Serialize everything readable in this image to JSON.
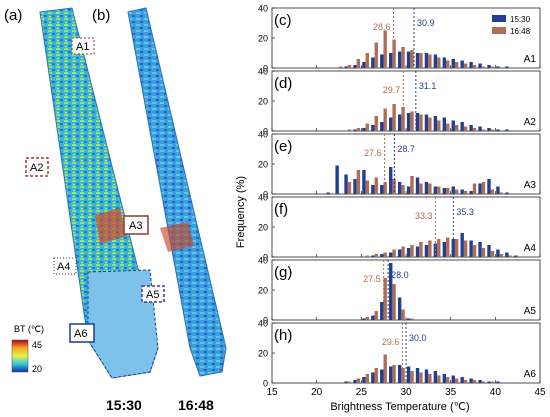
{
  "colors": {
    "s1530": "#1f3f93",
    "s1648": "#b06d55"
  },
  "images": {
    "panels": [
      {
        "letter": "(a)",
        "time": "15:30"
      },
      {
        "letter": "(b)",
        "time": "16:48"
      }
    ],
    "region_labels": [
      "A1",
      "A2",
      "A3",
      "A4",
      "A5",
      "A6"
    ],
    "colorbar": {
      "label": "BT (℃)",
      "max": "45",
      "min": "20"
    }
  },
  "chart_data": [
    {
      "type": "bar",
      "letter": "(c)",
      "region": "A1",
      "mean_1530": 30.9,
      "mean_1648": 28.6,
      "mean_1530_label": "30.9",
      "mean_1648_label": "28.6",
      "bins": [
        15,
        16,
        17,
        18,
        19,
        20,
        21,
        22,
        23,
        24,
        25,
        26,
        27,
        28,
        29,
        30,
        31,
        32,
        33,
        34,
        35,
        36,
        37,
        38,
        39,
        40,
        41,
        42,
        43,
        44
      ],
      "series": [
        {
          "name": "15:30",
          "values": [
            0,
            0,
            0,
            0,
            0,
            0,
            0,
            0,
            1,
            2,
            4,
            7,
            9,
            10,
            11,
            11,
            10,
            10,
            9,
            7,
            6,
            5,
            4,
            3,
            2,
            1,
            1,
            0,
            0,
            0
          ]
        },
        {
          "name": "16:48",
          "values": [
            0,
            0,
            0,
            0,
            0,
            0,
            0,
            1,
            2,
            6,
            10,
            17,
            25,
            19,
            14,
            12,
            10,
            9,
            7,
            5,
            4,
            3,
            2,
            1,
            1,
            0,
            0,
            0,
            0,
            0
          ]
        }
      ]
    },
    {
      "type": "bar",
      "letter": "(d)",
      "region": "A2",
      "mean_1530": 31.1,
      "mean_1648": 29.7,
      "mean_1530_label": "31.1",
      "mean_1648_label": "29.7",
      "bins": [
        15,
        16,
        17,
        18,
        19,
        20,
        21,
        22,
        23,
        24,
        25,
        26,
        27,
        28,
        29,
        30,
        31,
        32,
        33,
        34,
        35,
        36,
        37,
        38,
        39,
        40,
        41,
        42,
        43,
        44
      ],
      "series": [
        {
          "name": "15:30",
          "values": [
            0,
            0,
            0,
            0,
            0,
            0,
            0,
            0,
            0,
            1,
            2,
            4,
            6,
            9,
            11,
            12,
            12,
            11,
            10,
            9,
            7,
            6,
            4,
            3,
            2,
            1,
            1,
            0,
            0,
            0
          ]
        },
        {
          "name": "16:48",
          "values": [
            0,
            0,
            0,
            0,
            0,
            0,
            0,
            0,
            1,
            2,
            5,
            10,
            15,
            18,
            16,
            13,
            11,
            9,
            7,
            5,
            4,
            3,
            2,
            1,
            1,
            0,
            0,
            0,
            0,
            0
          ]
        }
      ]
    },
    {
      "type": "bar",
      "letter": "(e)",
      "region": "A3",
      "mean_1530": 28.7,
      "mean_1648": 27.6,
      "mean_1530_label": "28.7",
      "mean_1648_label": "27.6",
      "bins": [
        15,
        16,
        17,
        18,
        19,
        20,
        21,
        22,
        23,
        24,
        25,
        26,
        27,
        28,
        29,
        30,
        31,
        32,
        33,
        34,
        35,
        36,
        37,
        38,
        39,
        40,
        41,
        42,
        43,
        44
      ],
      "series": [
        {
          "name": "15:30",
          "values": [
            0,
            0,
            0,
            0,
            0,
            0,
            1,
            19,
            13,
            10,
            16,
            6,
            6,
            18,
            8,
            5,
            11,
            8,
            5,
            4,
            5,
            3,
            2,
            7,
            10,
            5,
            1,
            0,
            0,
            0
          ]
        },
        {
          "name": "16:48",
          "values": [
            0,
            0,
            0,
            0,
            0,
            0,
            0,
            0,
            8,
            16,
            9,
            11,
            8,
            10,
            6,
            12,
            7,
            7,
            5,
            4,
            3,
            2,
            7,
            8,
            3,
            1,
            0,
            0,
            0,
            0
          ]
        }
      ]
    },
    {
      "type": "bar",
      "letter": "(f)",
      "region": "A4",
      "mean_1530": 35.3,
      "mean_1648": 33.3,
      "mean_1530_label": "35.3",
      "mean_1648_label": "33.3",
      "bins": [
        15,
        16,
        17,
        18,
        19,
        20,
        21,
        22,
        23,
        24,
        25,
        26,
        27,
        28,
        29,
        30,
        31,
        32,
        33,
        34,
        35,
        36,
        37,
        38,
        39,
        40,
        41,
        42,
        43,
        44
      ],
      "series": [
        {
          "name": "15:30",
          "values": [
            0,
            0,
            0,
            0,
            0,
            0,
            0,
            0,
            0,
            0,
            0,
            1,
            2,
            3,
            5,
            6,
            7,
            8,
            9,
            10,
            12,
            16,
            11,
            10,
            8,
            5,
            3,
            1,
            0,
            0
          ]
        },
        {
          "name": "16:48",
          "values": [
            0,
            0,
            0,
            0,
            0,
            0,
            0,
            0,
            0,
            0,
            1,
            2,
            3,
            5,
            7,
            8,
            10,
            11,
            12,
            13,
            12,
            11,
            8,
            6,
            4,
            2,
            1,
            0,
            0,
            0
          ]
        }
      ]
    },
    {
      "type": "bar",
      "letter": "(g)",
      "region": "A5",
      "mean_1530": 28.0,
      "mean_1648": 27.5,
      "mean_1530_label": "28.0",
      "mean_1648_label": "27.5",
      "bins": [
        15,
        16,
        17,
        18,
        19,
        20,
        21,
        22,
        23,
        24,
        25,
        26,
        27,
        28,
        29,
        30,
        31,
        32,
        33,
        34,
        35,
        36,
        37,
        38,
        39,
        40,
        41,
        42,
        43,
        44
      ],
      "series": [
        {
          "name": "15:30",
          "values": [
            0,
            0,
            0,
            0,
            0,
            0,
            0,
            0,
            0,
            0,
            1,
            3,
            12,
            38,
            15,
            1,
            0,
            0,
            0,
            0,
            0,
            0,
            0,
            0,
            0,
            0,
            0,
            0,
            0,
            0
          ]
        },
        {
          "name": "16:48",
          "values": [
            0,
            0,
            0,
            0,
            0,
            0,
            0,
            0,
            0,
            0,
            2,
            6,
            28,
            24,
            7,
            1,
            0,
            0,
            0,
            0,
            0,
            0,
            0,
            0,
            0,
            0,
            0,
            0,
            0,
            0
          ]
        }
      ]
    },
    {
      "type": "bar",
      "letter": "(h)",
      "region": "A6",
      "mean_1530": 30.0,
      "mean_1648": 29.6,
      "mean_1530_label": "30.0",
      "mean_1648_label": "29.6",
      "bins": [
        15,
        16,
        17,
        18,
        19,
        20,
        21,
        22,
        23,
        24,
        25,
        26,
        27,
        28,
        29,
        30,
        31,
        32,
        33,
        34,
        35,
        36,
        37,
        38,
        39,
        40,
        41,
        42,
        43,
        44
      ],
      "series": [
        {
          "name": "15:30",
          "values": [
            0,
            0,
            0,
            0,
            0,
            0,
            0,
            0,
            1,
            2,
            4,
            7,
            9,
            11,
            12,
            11,
            10,
            9,
            8,
            6,
            5,
            4,
            3,
            2,
            1,
            1,
            0,
            0,
            0,
            0
          ]
        },
        {
          "name": "16:48",
          "values": [
            0,
            0,
            0,
            0,
            0,
            0,
            0,
            0,
            1,
            3,
            6,
            10,
            19,
            12,
            10,
            8,
            7,
            6,
            5,
            4,
            3,
            2,
            2,
            1,
            1,
            0,
            0,
            0,
            0,
            0
          ]
        }
      ]
    }
  ],
  "axes": {
    "ylabel": "Frequency (%)",
    "xlabel": "Brightness Temperature (℃)",
    "xticks": [
      "15",
      "20",
      "25",
      "30",
      "35",
      "40",
      "45"
    ],
    "xlim": [
      15,
      45
    ],
    "yticks": [
      "0",
      "20",
      "40"
    ],
    "ylim": [
      0,
      40
    ]
  },
  "legend": [
    "15:30",
    "16:48"
  ]
}
